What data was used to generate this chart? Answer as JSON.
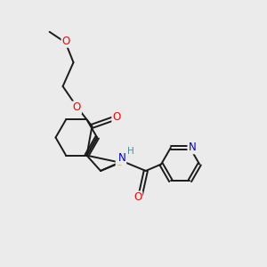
{
  "background_color": "#ebebeb",
  "bond_color": "#1a1a1a",
  "atom_colors": {
    "O": "#ff0000",
    "N": "#0000cc",
    "S": "#b8b800",
    "H": "#4a9090",
    "C": "#1a1a1a"
  },
  "figsize": [
    3.0,
    3.0
  ],
  "dpi": 100,
  "lw": 1.4,
  "fs": 8.5
}
